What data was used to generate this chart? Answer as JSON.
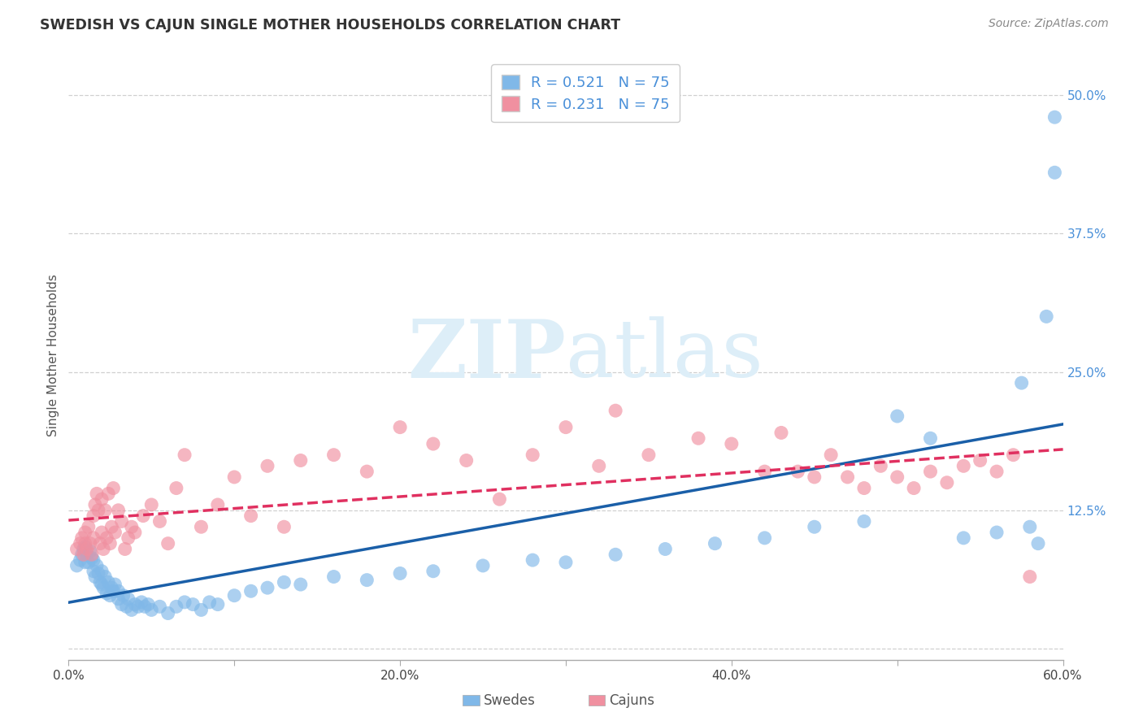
{
  "title": "SWEDISH VS CAJUN SINGLE MOTHER HOUSEHOLDS CORRELATION CHART",
  "source": "Source: ZipAtlas.com",
  "xlabel_swedes": "Swedes",
  "xlabel_cajuns": "Cajuns",
  "ylabel": "Single Mother Households",
  "r_swedes": 0.521,
  "n_swedes": 75,
  "r_cajuns": 0.231,
  "n_cajuns": 75,
  "xlim": [
    0.0,
    0.6
  ],
  "ylim": [
    -0.01,
    0.54
  ],
  "xticks": [
    0.0,
    0.1,
    0.2,
    0.3,
    0.4,
    0.5,
    0.6
  ],
  "xtick_labels": [
    "0.0%",
    "",
    "20.0%",
    "",
    "40.0%",
    "",
    "60.0%"
  ],
  "yticks": [
    0.0,
    0.125,
    0.25,
    0.375,
    0.5
  ],
  "ytick_labels": [
    "",
    "12.5%",
    "25.0%",
    "37.5%",
    "50.0%"
  ],
  "color_swedes": "#80b8e8",
  "color_cajuns": "#f090a0",
  "line_color_swedes": "#1a5fa8",
  "line_color_cajuns": "#e03060",
  "background_color": "#ffffff",
  "grid_color": "#d0d0d0",
  "watermark_color": "#ddeef8",
  "swedes_x": [
    0.005,
    0.007,
    0.008,
    0.009,
    0.01,
    0.01,
    0.011,
    0.012,
    0.013,
    0.014,
    0.015,
    0.015,
    0.016,
    0.017,
    0.018,
    0.019,
    0.02,
    0.02,
    0.021,
    0.022,
    0.023,
    0.024,
    0.025,
    0.026,
    0.027,
    0.028,
    0.03,
    0.03,
    0.032,
    0.033,
    0.035,
    0.036,
    0.038,
    0.04,
    0.042,
    0.044,
    0.046,
    0.048,
    0.05,
    0.055,
    0.06,
    0.065,
    0.07,
    0.075,
    0.08,
    0.085,
    0.09,
    0.1,
    0.11,
    0.12,
    0.13,
    0.14,
    0.16,
    0.18,
    0.2,
    0.22,
    0.25,
    0.28,
    0.3,
    0.33,
    0.36,
    0.39,
    0.42,
    0.45,
    0.48,
    0.5,
    0.52,
    0.54,
    0.56,
    0.575,
    0.58,
    0.585,
    0.59,
    0.595,
    0.595
  ],
  "swedes_y": [
    0.075,
    0.08,
    0.085,
    0.09,
    0.078,
    0.092,
    0.085,
    0.078,
    0.088,
    0.082,
    0.07,
    0.08,
    0.065,
    0.075,
    0.068,
    0.06,
    0.058,
    0.07,
    0.055,
    0.065,
    0.05,
    0.06,
    0.048,
    0.055,
    0.052,
    0.058,
    0.045,
    0.052,
    0.04,
    0.048,
    0.038,
    0.045,
    0.035,
    0.04,
    0.038,
    0.042,
    0.038,
    0.04,
    0.035,
    0.038,
    0.032,
    0.038,
    0.042,
    0.04,
    0.035,
    0.042,
    0.04,
    0.048,
    0.052,
    0.055,
    0.06,
    0.058,
    0.065,
    0.062,
    0.068,
    0.07,
    0.075,
    0.08,
    0.078,
    0.085,
    0.09,
    0.095,
    0.1,
    0.11,
    0.115,
    0.21,
    0.19,
    0.1,
    0.105,
    0.24,
    0.11,
    0.095,
    0.3,
    0.48,
    0.43
  ],
  "cajuns_x": [
    0.005,
    0.007,
    0.008,
    0.009,
    0.01,
    0.01,
    0.011,
    0.012,
    0.013,
    0.014,
    0.015,
    0.015,
    0.016,
    0.017,
    0.018,
    0.019,
    0.02,
    0.02,
    0.021,
    0.022,
    0.023,
    0.024,
    0.025,
    0.026,
    0.027,
    0.028,
    0.03,
    0.032,
    0.034,
    0.036,
    0.038,
    0.04,
    0.045,
    0.05,
    0.055,
    0.06,
    0.065,
    0.07,
    0.08,
    0.09,
    0.1,
    0.11,
    0.12,
    0.13,
    0.14,
    0.16,
    0.18,
    0.2,
    0.22,
    0.24,
    0.26,
    0.28,
    0.3,
    0.32,
    0.33,
    0.35,
    0.38,
    0.4,
    0.42,
    0.43,
    0.44,
    0.45,
    0.46,
    0.47,
    0.48,
    0.49,
    0.5,
    0.51,
    0.52,
    0.53,
    0.54,
    0.55,
    0.56,
    0.57,
    0.58
  ],
  "cajuns_y": [
    0.09,
    0.095,
    0.1,
    0.085,
    0.095,
    0.105,
    0.09,
    0.11,
    0.095,
    0.085,
    0.12,
    0.1,
    0.13,
    0.14,
    0.125,
    0.095,
    0.105,
    0.135,
    0.09,
    0.125,
    0.1,
    0.14,
    0.095,
    0.11,
    0.145,
    0.105,
    0.125,
    0.115,
    0.09,
    0.1,
    0.11,
    0.105,
    0.12,
    0.13,
    0.115,
    0.095,
    0.145,
    0.175,
    0.11,
    0.13,
    0.155,
    0.12,
    0.165,
    0.11,
    0.17,
    0.175,
    0.16,
    0.2,
    0.185,
    0.17,
    0.135,
    0.175,
    0.2,
    0.165,
    0.215,
    0.175,
    0.19,
    0.185,
    0.16,
    0.195,
    0.16,
    0.155,
    0.175,
    0.155,
    0.145,
    0.165,
    0.155,
    0.145,
    0.16,
    0.15,
    0.165,
    0.17,
    0.16,
    0.175,
    0.065
  ]
}
